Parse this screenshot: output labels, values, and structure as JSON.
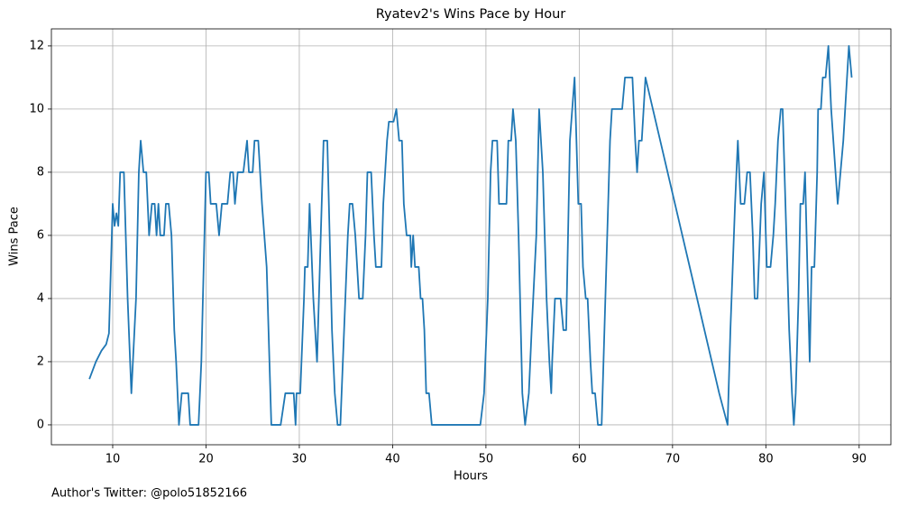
{
  "chart_data": {
    "type": "line",
    "title": "Ryatev2's Wins Pace by Hour",
    "xlabel": "Hours",
    "ylabel": "Wins Pace",
    "footnote": "Author's Twitter: @polo51852166",
    "x": [
      7.5,
      8.2,
      8.8,
      9.3,
      9.6,
      10,
      10.2,
      10.4,
      10.6,
      10.8,
      11.2,
      11.6,
      12,
      12.5,
      12.8,
      13,
      13.3,
      13.6,
      13.9,
      14.2,
      14.5,
      14.7,
      14.9,
      15.1,
      15.5,
      15.7,
      16,
      16.3,
      16.6,
      16.8,
      17.1,
      17.4,
      18.1,
      18.3,
      19.2,
      19.5,
      20,
      20.3,
      20.5,
      21.1,
      21.4,
      21.7,
      22.3,
      22.6,
      22.9,
      23.1,
      23.4,
      24,
      24.4,
      24.6,
      25,
      25.2,
      25.6,
      26,
      26.5,
      26.8,
      27,
      28,
      28.5,
      29.4,
      29.6,
      29.7,
      30.1,
      30.5,
      30.6,
      30.9,
      31.1,
      31.5,
      31.9,
      32.4,
      32.6,
      33,
      33.5,
      33.8,
      34.1,
      34.4,
      34.8,
      35.2,
      35.4,
      35.7,
      36,
      36.4,
      36.8,
      37.1,
      37.3,
      37.7,
      38,
      38.2,
      38.8,
      39,
      39.4,
      39.6,
      40.1,
      40.4,
      40.7,
      41,
      41.2,
      41.5,
      41.9,
      42,
      42.2,
      42.4,
      42.8,
      43,
      43.2,
      43.4,
      43.6,
      43.9,
      44.2,
      49.4,
      49.8,
      50.2,
      50.5,
      50.7,
      51.2,
      51.4,
      52.2,
      52.4,
      52.7,
      52.9,
      53.2,
      53.5,
      53.9,
      54.2,
      54.6,
      54.9,
      55.4,
      55.7,
      56.1,
      56.5,
      56.8,
      57,
      57.1,
      57.4,
      58,
      58.3,
      58.6,
      59,
      59.5,
      59.9,
      60.2,
      60.4,
      60.7,
      60.9,
      61.2,
      61.4,
      61.7,
      62,
      62.4,
      62.7,
      63,
      63.3,
      63.5,
      64.6,
      64.9,
      65.7,
      66,
      66.2,
      66.4,
      66.7,
      67.1,
      75,
      75.9,
      76.2,
      76.7,
      77,
      77.3,
      77.7,
      78,
      78.3,
      78.6,
      78.8,
      79.1,
      79.5,
      79.8,
      80.1,
      80.5,
      80.8,
      81,
      81.3,
      81.6,
      81.8,
      82.2,
      82.5,
      82.8,
      83,
      83.2,
      83.5,
      83.7,
      84,
      84.2,
      84.7,
      84.9,
      85.2,
      85.5,
      85.6,
      85.9,
      86.1,
      86.4,
      86.7,
      87,
      87.7,
      88.3,
      88.9,
      89.2
    ],
    "series": [
      {
        "name": "Wins Pace",
        "color": "#1f77b4",
        "values": [
          1.45,
          2,
          2.35,
          2.55,
          2.9,
          7,
          6.3,
          6.7,
          6.3,
          8,
          8,
          4,
          1,
          4,
          8,
          9,
          8,
          8,
          6,
          7,
          7,
          6,
          7,
          6,
          6,
          7,
          7,
          6,
          3,
          2,
          0,
          1,
          1,
          0,
          0,
          2,
          8,
          8,
          7,
          7,
          6,
          7,
          7,
          8,
          8,
          7,
          8,
          8,
          9,
          8,
          8,
          9,
          9,
          7,
          5,
          2,
          0,
          0,
          1,
          1,
          0,
          1,
          1,
          4,
          5,
          5,
          7,
          4,
          2,
          7,
          9,
          9,
          3,
          1,
          0,
          0,
          3,
          6,
          7,
          7,
          6,
          4,
          4,
          6,
          8,
          8,
          6,
          5,
          5,
          7,
          9,
          9.6,
          9.6,
          10,
          9,
          9,
          7,
          6,
          6,
          5,
          6,
          5,
          5,
          4,
          4,
          3,
          1,
          1,
          0,
          0,
          1,
          4,
          8,
          9,
          9,
          7,
          7,
          9,
          9,
          10,
          9,
          6,
          1,
          0,
          1,
          3,
          6,
          10,
          8,
          4,
          2,
          1,
          2,
          4,
          4,
          3,
          3,
          9,
          11,
          7,
          7,
          5,
          4,
          4,
          2,
          1,
          1,
          0,
          0,
          3,
          6,
          9,
          10,
          10,
          11,
          11,
          9,
          8,
          9,
          9,
          11,
          1,
          0,
          3,
          7,
          9,
          7,
          7,
          8,
          8,
          6,
          4,
          4,
          7,
          8,
          5,
          5,
          6,
          7,
          9,
          10,
          10,
          6,
          3,
          1,
          0,
          1,
          4,
          7,
          7,
          8,
          2,
          5,
          5,
          8,
          10,
          10,
          11,
          11,
          12,
          10,
          7,
          9,
          12,
          11
        ]
      }
    ],
    "xlim": [
      3.43,
      93.4
    ],
    "ylim": [
      -0.63,
      12.54
    ],
    "xticks": [
      10,
      20,
      30,
      40,
      50,
      60,
      70,
      80,
      90
    ],
    "yticks": [
      0,
      2,
      4,
      6,
      8,
      10,
      12
    ],
    "grid": true
  }
}
